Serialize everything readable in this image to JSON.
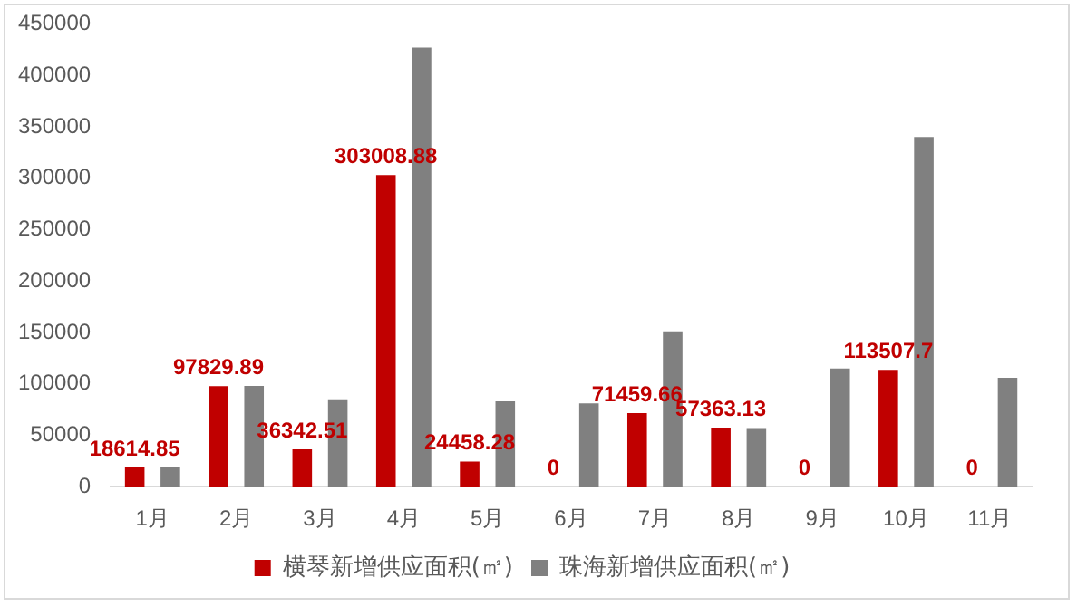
{
  "chart_data": {
    "type": "bar",
    "categories": [
      "1月",
      "2月",
      "3月",
      "4月",
      "5月",
      "6月",
      "7月",
      "8月",
      "9月",
      "10月",
      "11月"
    ],
    "series": [
      {
        "name": "横琴新增供应面积(㎡)",
        "color": "#c00000",
        "values": [
          18614.85,
          97829.89,
          36342.51,
          303008.88,
          24458.28,
          0,
          71459.66,
          57363.13,
          0,
          113507.7,
          0
        ],
        "value_labels": [
          "18614.85",
          "97829.89",
          "36342.51",
          "303008.88",
          "24458.28",
          "0",
          "71459.66",
          "57363.13",
          "0",
          "113507.7",
          "0"
        ]
      },
      {
        "name": "珠海新增供应面积(㎡)",
        "color": "#808080",
        "values": [
          19000,
          98000,
          85000,
          427000,
          83000,
          81000,
          151000,
          57000,
          115000,
          340000,
          106000
        ]
      }
    ],
    "ylim": [
      0,
      450000
    ],
    "yticks": [
      0,
      50000,
      100000,
      150000,
      200000,
      250000,
      300000,
      350000,
      400000,
      450000
    ],
    "grid": false,
    "legend": "bottom"
  }
}
